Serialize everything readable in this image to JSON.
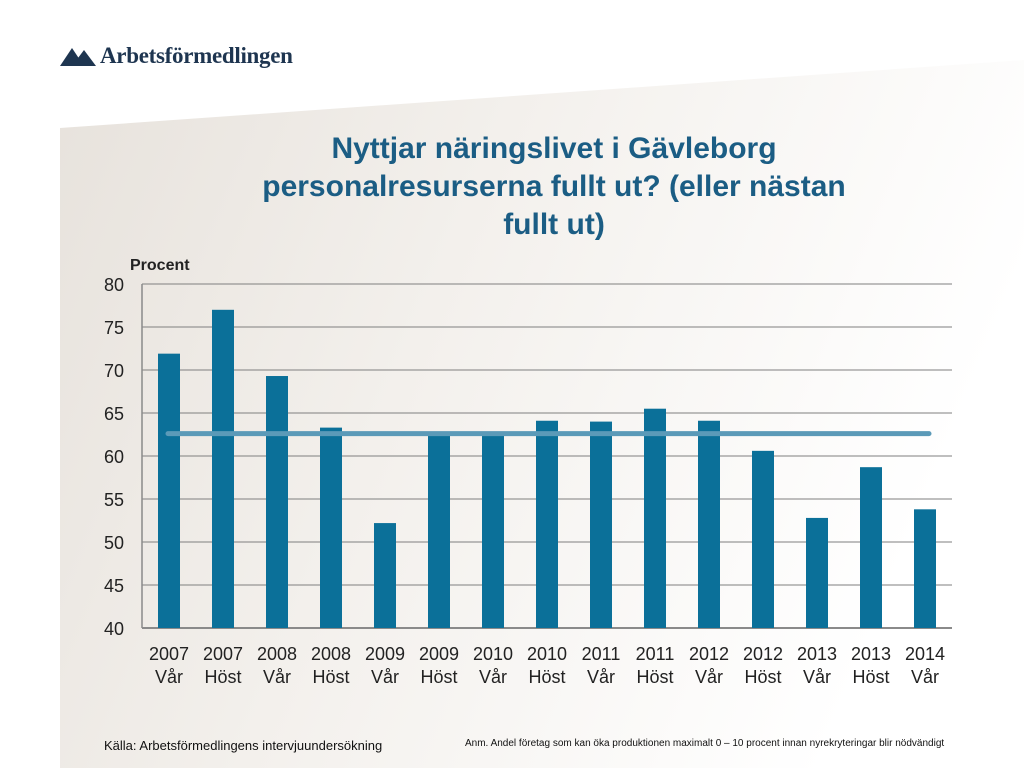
{
  "logo": {
    "name": "Arbetsförmedlingen"
  },
  "title": "Nyttjar näringslivet i Gävleborg personalresurserna fullt ut? (eller nästan fullt ut)",
  "source": "Källa: Arbetsförmedlingens intervjuundersökning",
  "note": "Anm. Andel företag som kan öka produktionen maximalt 0 – 10 procent innan nyrekryteringar blir nödvändigt",
  "colors": {
    "bar": "#0b7099",
    "average_line": "#5b9ab8",
    "title": "#1b5d84"
  },
  "chart_data": {
    "type": "bar",
    "ylabel": "Procent",
    "ylim": [
      40,
      80
    ],
    "yticks": [
      40,
      45,
      50,
      55,
      60,
      65,
      70,
      75,
      80
    ],
    "grid": true,
    "categories": [
      [
        "2007",
        "Vår"
      ],
      [
        "2007",
        "Höst"
      ],
      [
        "2008",
        "Vår"
      ],
      [
        "2008",
        "Höst"
      ],
      [
        "2009",
        "Vår"
      ],
      [
        "2009",
        "Höst"
      ],
      [
        "2010",
        "Vår"
      ],
      [
        "2010",
        "Höst"
      ],
      [
        "2011",
        "Vår"
      ],
      [
        "2011",
        "Höst"
      ],
      [
        "2012",
        "Vår"
      ],
      [
        "2012",
        "Höst"
      ],
      [
        "2013",
        "Vår"
      ],
      [
        "2013",
        "Höst"
      ],
      [
        "2014",
        "Vår"
      ]
    ],
    "values": [
      71.9,
      77.0,
      69.3,
      63.3,
      52.2,
      62.4,
      62.4,
      64.1,
      64.0,
      65.5,
      64.1,
      60.6,
      52.8,
      58.7,
      53.8
    ],
    "average_line": 62.6
  }
}
